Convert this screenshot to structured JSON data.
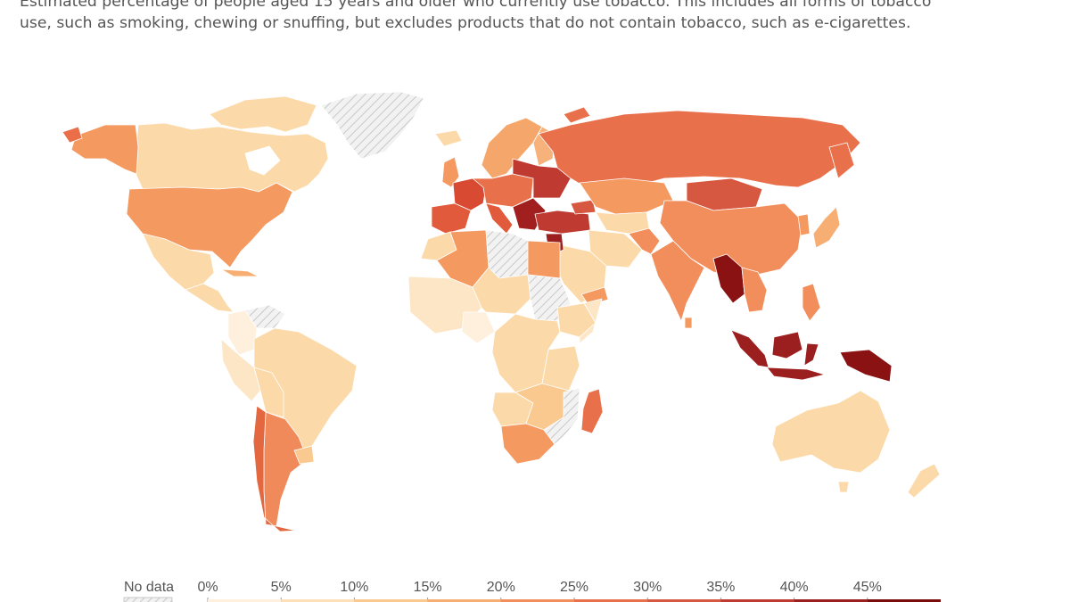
{
  "subtitle": "Estimated percentage of people aged 15 years and older who currently use tobacco. This includes all forms of tobacco use, such as smoking, chewing or snuffing, but excludes products that do not contain tobacco, such as e-cigarettes.",
  "legend": {
    "no_data_label": "No data",
    "ticks": [
      "0%",
      "5%",
      "10%",
      "15%",
      "20%",
      "25%",
      "30%",
      "35%",
      "40%",
      "45%"
    ]
  },
  "colors": {
    "no_data": "#e0e0e0",
    "scale": [
      "#fff0dd",
      "#fde0b8",
      "#fac98f",
      "#f7ae73",
      "#f28e5c",
      "#e8714b",
      "#d75840",
      "#bf3a30",
      "#9c1f1f",
      "#7a0c0c"
    ]
  }
}
